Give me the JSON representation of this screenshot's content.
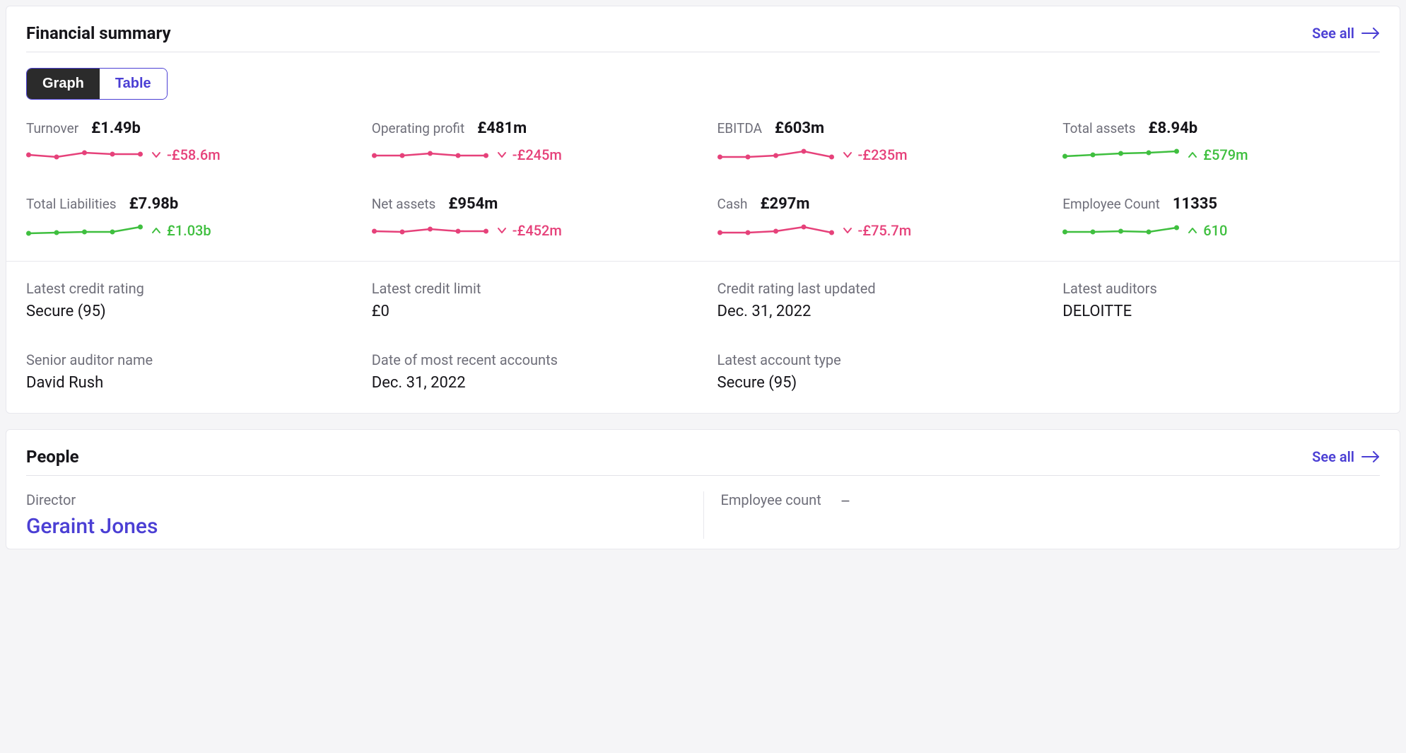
{
  "colors": {
    "accent": "#4b3fd4",
    "negative": "#e6417a",
    "positive": "#3fbf3f",
    "text_muted": "#6f6f7a",
    "text": "#16151a",
    "border": "#e8e8ed",
    "toggle_active_bg": "#2b2b2b"
  },
  "sparkline": {
    "width": 165,
    "height": 30,
    "stroke_width": 2.5,
    "marker_radius": 3.5,
    "point_count": 5
  },
  "financial": {
    "title": "Financial summary",
    "see_all": "See all",
    "toggle": {
      "graph": "Graph",
      "table": "Table",
      "active": "graph"
    },
    "metrics": [
      {
        "label": "Turnover",
        "value": "£1.49b",
        "delta": "-£58.6m",
        "direction": "down",
        "spark": [
          15,
          18,
          12,
          14,
          14
        ]
      },
      {
        "label": "Operating profit",
        "value": "£481m",
        "delta": "-£245m",
        "direction": "down",
        "spark": [
          16,
          16,
          13,
          16,
          16
        ]
      },
      {
        "label": "EBITDA",
        "value": "£603m",
        "delta": "-£235m",
        "direction": "down",
        "spark": [
          18,
          18,
          16,
          10,
          18
        ]
      },
      {
        "label": "Total assets",
        "value": "£8.94b",
        "delta": "£579m",
        "direction": "up",
        "spark": [
          17,
          15,
          13,
          12,
          10
        ]
      },
      {
        "label": "Total Liabilities",
        "value": "£7.98b",
        "delta": "£1.03b",
        "direction": "up",
        "spark": [
          19,
          18,
          17,
          17,
          10
        ]
      },
      {
        "label": "Net assets",
        "value": "£954m",
        "delta": "-£452m",
        "direction": "down",
        "spark": [
          16,
          17,
          13,
          16,
          16
        ]
      },
      {
        "label": "Cash",
        "value": "£297m",
        "delta": "-£75.7m",
        "direction": "down",
        "spark": [
          18,
          18,
          16,
          10,
          18
        ]
      },
      {
        "label": "Employee Count",
        "value": "11335",
        "delta": "610",
        "direction": "up",
        "spark": [
          17,
          17,
          16,
          17,
          11
        ]
      }
    ],
    "details": [
      {
        "label": "Latest credit rating",
        "value": "Secure (95)"
      },
      {
        "label": "Latest credit limit",
        "value": "£0"
      },
      {
        "label": "Credit rating last updated",
        "value": "Dec. 31, 2022"
      },
      {
        "label": "Latest auditors",
        "value": "DELOITTE"
      },
      {
        "label": "Senior auditor name",
        "value": "David Rush"
      },
      {
        "label": "Date of most recent accounts",
        "value": "Dec. 31, 2022"
      },
      {
        "label": "Latest account type",
        "value": "Secure (95)"
      }
    ]
  },
  "people": {
    "title": "People",
    "see_all": "See all",
    "director_label": "Director",
    "director_name": "Geraint Jones",
    "employee_count_label": "Employee count",
    "employee_count_value": "—"
  }
}
